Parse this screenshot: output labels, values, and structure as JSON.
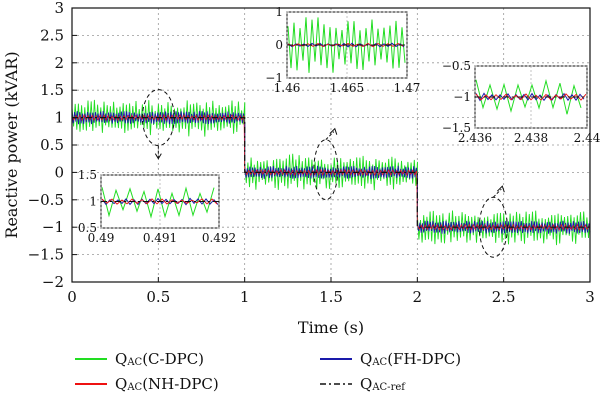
{
  "chart_data": {
    "type": "line",
    "xlabel": "Time (s)",
    "ylabel": "Reactive power (kVAR)",
    "xlim": [
      0,
      3
    ],
    "ylim": [
      -2,
      3
    ],
    "xticks": [
      "0",
      "0.5",
      "1",
      "1.5",
      "2",
      "2.5",
      "3"
    ],
    "yticks": [
      "-2",
      "-1.5",
      "-1",
      "-0.5",
      "0",
      "0.5",
      "1",
      "1.5",
      "2",
      "2.5",
      "3"
    ],
    "grid": true,
    "legend_position": "bottom",
    "reference": {
      "name": "Q_AC-ref",
      "x": [
        0,
        1,
        1,
        2,
        2,
        3
      ],
      "y": [
        1,
        1,
        0,
        0,
        -1,
        -1
      ]
    },
    "series": [
      {
        "name": "Q_AC (C-DPC)",
        "color": "#22dd22",
        "ripple_kVAR": 0.35
      },
      {
        "name": "Q_AC (FH-DPC)",
        "color": "#1a1aaa",
        "ripple_kVAR": 0.12
      },
      {
        "name": "Q_AC (NH-DPC)",
        "color": "#ee1111",
        "ripple_kVAR": 0.05
      },
      {
        "name": "Q_AC-ref",
        "color": "#111111",
        "style": "dash-dot"
      }
    ],
    "insets": [
      {
        "xlim": [
          0.49,
          0.492
        ],
        "xticks": [
          "0.49",
          "0.491",
          "0.492"
        ],
        "ylim": [
          0.5,
          1.5
        ],
        "yticks": [
          "1.5",
          "1",
          "0.5"
        ],
        "setpoint": 1
      },
      {
        "xlim": [
          1.46,
          1.47
        ],
        "xticks": [
          "1.46",
          "1.465",
          "1.47"
        ],
        "ylim": [
          -1,
          1
        ],
        "yticks": [
          "1",
          "0",
          "-1"
        ],
        "setpoint": 0
      },
      {
        "xlim": [
          2.436,
          2.44
        ],
        "xticks": [
          "2.436",
          "2.438",
          "2.44"
        ],
        "ylim": [
          -1.5,
          -0.5
        ],
        "yticks": [
          "-0.5",
          "-1",
          "-1.5"
        ],
        "setpoint": -1
      }
    ]
  },
  "legend": {
    "items": [
      {
        "main": "Q",
        "sub": "AC",
        "suffix": " (C-DPC)",
        "color": "#22dd22",
        "style": "solid"
      },
      {
        "main": "Q",
        "sub": "AC",
        "suffix": " (FH-DPC)",
        "color": "#1a1aaa",
        "style": "solid"
      },
      {
        "main": "Q",
        "sub": "AC",
        "suffix": " (NH-DPC)",
        "color": "#ee1111",
        "style": "solid"
      },
      {
        "main": "Q",
        "sub": "AC-ref",
        "suffix": "",
        "color": "#111111",
        "style": "dashdot"
      }
    ]
  }
}
